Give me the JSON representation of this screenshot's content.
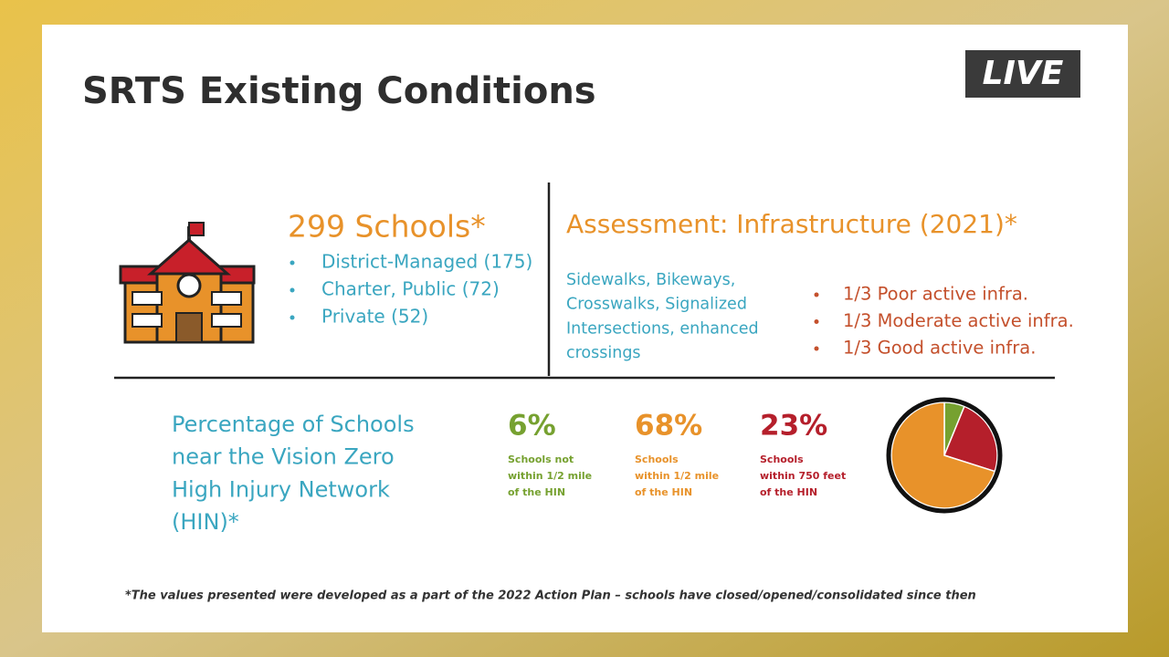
{
  "header": {
    "title": "SRTS Existing Conditions",
    "badge": "LIVE"
  },
  "schools": {
    "heading": "299 Schools*",
    "items": [
      "District-Managed (175)",
      "Charter, Public (72)",
      "Private (52)"
    ]
  },
  "assessment": {
    "heading": "Assessment: Infrastructure (2021)*",
    "description": [
      "Sidewalks, Bikeways,",
      "Crosswalks, Signalized",
      "Intersections, enhanced",
      "crossings"
    ],
    "items": [
      "1/3 Poor active infra.",
      "1/3 Moderate active infra.",
      "1/3 Good active infra."
    ]
  },
  "hin": {
    "heading": [
      "Percentage of Schools",
      "near the Vision Zero",
      "High Injury Network",
      "(HIN)*"
    ],
    "stats": [
      {
        "value": 6,
        "label": "6%",
        "text": [
          "Schools not",
          "within 1/2 mile",
          "of the HIN"
        ],
        "color": "#76a130"
      },
      {
        "value": 68,
        "label": "68%",
        "text": [
          "Schools",
          "within 1/2 mile",
          "of the HIN"
        ],
        "color": "#e8922a"
      },
      {
        "value": 23,
        "label": "23%",
        "text": [
          "Schools",
          "within 750 feet",
          "of the HIN"
        ],
        "color": "#b51f2b"
      }
    ]
  },
  "footnote": "*The values presented were developed as a part of the 2022 Action Plan – schools have closed/opened/consolidated since then"
}
